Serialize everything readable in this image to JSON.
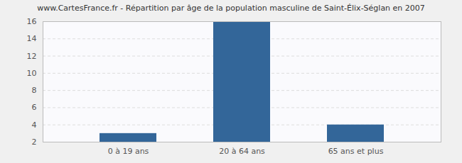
{
  "chart_data": {
    "type": "bar",
    "title": "www.CartesFrance.fr - Répartition par âge de la population masculine de Saint-Élix-Séglan en 2007",
    "categories": [
      "0 à 19 ans",
      "20 à 64 ans",
      "65 ans et plus"
    ],
    "values": [
      3,
      16,
      4
    ],
    "color": "#336699",
    "ylim": [
      2,
      16
    ],
    "yticks": [
      2,
      4,
      6,
      8,
      10,
      12,
      14,
      16
    ],
    "grid": true
  }
}
